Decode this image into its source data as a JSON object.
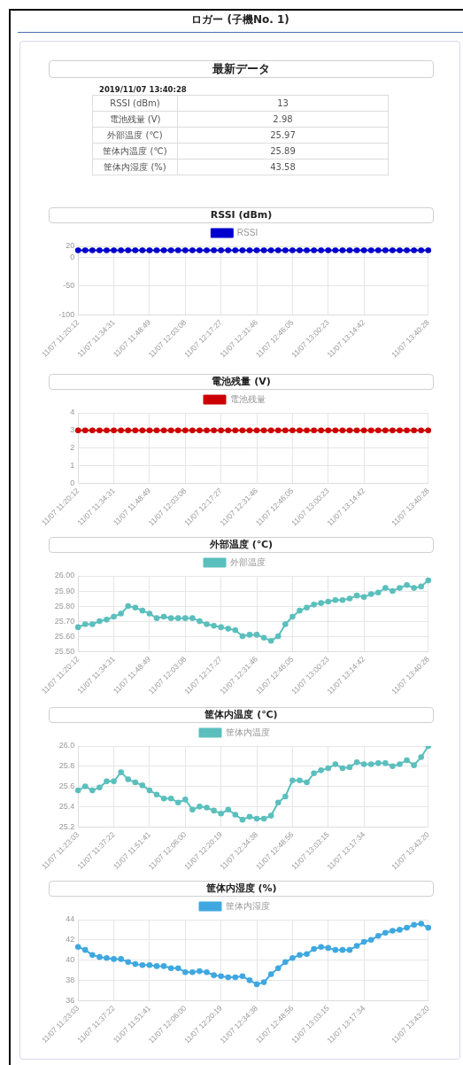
{
  "chart_data": [
    {
      "type": "other",
      "title": "ロガー (子機No. 1)",
      "subtitle": "最新データ",
      "annotations": [
        "2019/11/07 13:40:28",
        "RSSI (dBm)",
        "13",
        "電池残量 (V)",
        "2.98",
        "外部温度 (℃)",
        "25.97",
        "筐体内温度 (℃)",
        "25.89",
        "筐体内湿度 (%)",
        "43.58"
      ]
    },
    {
      "type": "line",
      "title": "RSSI (dBm)",
      "legend": "top",
      "grid": true,
      "marker": "circle",
      "line_style": "solid",
      "categories": [
        "11/07 11:20:12",
        null,
        null,
        null,
        null,
        "11/07 11:34:31",
        null,
        null,
        null,
        null,
        "11/07 11:48:49",
        null,
        null,
        null,
        null,
        "11/07 12:03:08",
        null,
        null,
        null,
        null,
        "11/07 12:17:27",
        null,
        null,
        null,
        null,
        "11/07 12:31:46",
        null,
        null,
        null,
        null,
        "11/07 12:46:05",
        null,
        null,
        null,
        null,
        "11/07 13:00:23",
        null,
        null,
        null,
        null,
        "11/07 13:14:42",
        null,
        null,
        null,
        null,
        null,
        null,
        null,
        null,
        "11/07 13:40:28"
      ],
      "ylim": [
        -100,
        20
      ],
      "yticks": [
        -100,
        -50,
        0,
        20
      ],
      "series": [
        {
          "name": "RSSI",
          "color": "#0000cc",
          "values": [
            13,
            13,
            13,
            13,
            13,
            13,
            13,
            13,
            13,
            13,
            13,
            13,
            13,
            13,
            13,
            13,
            13,
            13,
            13,
            13,
            13,
            13,
            13,
            13,
            13,
            13,
            13,
            13,
            13,
            13,
            13,
            13,
            13,
            13,
            13,
            13,
            13,
            13,
            13,
            13,
            13,
            13,
            13,
            13,
            13,
            13,
            13,
            13,
            13,
            13
          ]
        }
      ]
    },
    {
      "type": "line",
      "title": "電池残量 (V)",
      "legend": "top",
      "grid": true,
      "marker": "circle",
      "line_style": "solid",
      "categories": [
        "11/07 11:20:12",
        null,
        null,
        null,
        null,
        "11/07 11:34:31",
        null,
        null,
        null,
        null,
        "11/07 11:48:49",
        null,
        null,
        null,
        null,
        "11/07 12:03:08",
        null,
        null,
        null,
        null,
        "11/07 12:17:27",
        null,
        null,
        null,
        null,
        "11/07 12:31:46",
        null,
        null,
        null,
        null,
        "11/07 12:46:05",
        null,
        null,
        null,
        null,
        "11/07 13:00:23",
        null,
        null,
        null,
        null,
        "11/07 13:14:42",
        null,
        null,
        null,
        null,
        null,
        null,
        null,
        null,
        "11/07 13:40:28"
      ],
      "ylim": [
        0,
        4
      ],
      "yticks": [
        0,
        1,
        2,
        3,
        4
      ],
      "series": [
        {
          "name": "電池残量",
          "color": "#cc0000",
          "values": [
            3,
            3,
            3,
            3,
            3,
            3,
            3,
            3,
            3,
            3,
            3,
            3,
            3,
            3,
            3,
            3,
            3,
            3,
            3,
            3,
            3,
            3,
            3,
            3,
            3,
            3,
            3,
            3,
            3,
            3,
            3,
            3,
            3,
            3,
            3,
            3,
            3,
            3,
            3,
            3,
            3,
            3,
            3,
            3,
            3,
            3,
            3,
            3,
            3,
            3
          ]
        }
      ]
    },
    {
      "type": "line",
      "title": "外部温度 (℃)",
      "legend": "top",
      "grid": true,
      "marker": "circle",
      "line_style": "solid",
      "categories": [
        "11/07 11:20:12",
        null,
        null,
        null,
        null,
        "11/07 11:34:31",
        null,
        null,
        null,
        null,
        "11/07 11:48:49",
        null,
        null,
        null,
        null,
        "11/07 12:03:08",
        null,
        null,
        null,
        null,
        "11/07 12:17:27",
        null,
        null,
        null,
        null,
        "11/07 12:31:46",
        null,
        null,
        null,
        null,
        "11/07 12:46:05",
        null,
        null,
        null,
        null,
        "11/07 13:00:23",
        null,
        null,
        null,
        null,
        "11/07 13:14:42",
        null,
        null,
        null,
        null,
        null,
        null,
        null,
        null,
        "11/07 13:40:28"
      ],
      "ylim": [
        25.5,
        26
      ],
      "yticks": [
        {
          "value": 25.5,
          "label": "25.50"
        },
        {
          "value": 25.6,
          "label": "25.60"
        },
        {
          "value": 25.7,
          "label": "25.70"
        },
        {
          "value": 25.8,
          "label": "25.80"
        },
        {
          "value": 25.9,
          "label": "25.90"
        },
        {
          "value": 26,
          "label": "26.00"
        }
      ],
      "series": [
        {
          "name": "外部温度",
          "color": "#5bbfbd",
          "values": [
            25.66,
            25.68,
            25.68,
            25.7,
            25.71,
            25.73,
            25.75,
            25.8,
            25.79,
            25.77,
            25.75,
            25.72,
            25.73,
            25.72,
            25.72,
            25.72,
            25.72,
            25.7,
            25.68,
            25.67,
            25.66,
            25.65,
            25.64,
            25.6,
            25.61,
            25.61,
            25.59,
            25.57,
            25.6,
            25.68,
            25.73,
            25.77,
            25.79,
            25.81,
            25.82,
            25.83,
            25.84,
            25.84,
            25.85,
            25.87,
            25.86,
            25.88,
            25.89,
            25.92,
            25.9,
            25.92,
            25.94,
            25.92,
            25.93,
            25.97
          ]
        }
      ]
    },
    {
      "type": "line",
      "title": "筐体内温度 (℃)",
      "legend": "top",
      "grid": true,
      "marker": "circle",
      "line_style": "solid",
      "categories": [
        "11/07 11:23:03",
        null,
        null,
        null,
        null,
        "11/07 11:37:22",
        null,
        null,
        null,
        null,
        "11/07 11:51:41",
        null,
        null,
        null,
        null,
        "11/07 12:06:00",
        null,
        null,
        null,
        null,
        "11/07 12:20:19",
        null,
        null,
        null,
        null,
        "11/07 12:34:38",
        null,
        null,
        null,
        null,
        "11/07 12:48:56",
        null,
        null,
        null,
        null,
        "11/07 13:03:15",
        null,
        null,
        null,
        null,
        "11/07 13:17:34",
        null,
        null,
        null,
        null,
        null,
        null,
        null,
        null,
        "11/07 13:43:20"
      ],
      "ylim": [
        25.2,
        26
      ],
      "yticks": [
        {
          "value": 25.2,
          "label": "25.2"
        },
        {
          "value": 25.4,
          "label": "25.4"
        },
        {
          "value": 25.6,
          "label": "25.6"
        },
        {
          "value": 25.8,
          "label": "25.8"
        },
        {
          "value": 26,
          "label": "26.0"
        }
      ],
      "series": [
        {
          "name": "筐体内温度",
          "color": "#5bbfbd",
          "values": [
            25.56,
            25.6,
            25.56,
            25.59,
            25.65,
            25.65,
            25.74,
            25.67,
            25.64,
            25.61,
            25.56,
            25.52,
            25.48,
            25.48,
            25.44,
            25.47,
            25.37,
            25.4,
            25.39,
            25.36,
            25.33,
            25.37,
            25.32,
            25.27,
            25.3,
            25.28,
            25.28,
            25.31,
            25.44,
            25.5,
            25.66,
            25.66,
            25.64,
            25.73,
            25.76,
            25.78,
            25.82,
            25.78,
            25.79,
            25.84,
            25.82,
            25.82,
            25.83,
            25.83,
            25.8,
            25.82,
            25.86,
            25.81,
            25.89,
            26.0
          ]
        }
      ]
    },
    {
      "type": "line",
      "title": "筐体内湿度 (%)",
      "legend": "top",
      "grid": true,
      "marker": "circle",
      "line_style": "solid",
      "categories": [
        "11/07 11:23:03",
        null,
        null,
        null,
        null,
        "11/07 11:37:22",
        null,
        null,
        null,
        null,
        "11/07 11:51:41",
        null,
        null,
        null,
        null,
        "11/07 12:06:00",
        null,
        null,
        null,
        null,
        "11/07 12:20:19",
        null,
        null,
        null,
        null,
        "11/07 12:34:38",
        null,
        null,
        null,
        null,
        "11/07 12:48:56",
        null,
        null,
        null,
        null,
        "11/07 13:03:15",
        null,
        null,
        null,
        null,
        "11/07 13:17:34",
        null,
        null,
        null,
        null,
        null,
        null,
        null,
        null,
        "11/07 13:43:20"
      ],
      "ylim": [
        36,
        44
      ],
      "yticks": [
        36,
        38,
        40,
        42,
        44
      ],
      "series": [
        {
          "name": "筐体内湿度",
          "color": "#40a8e0",
          "values": [
            41.3,
            41.0,
            40.5,
            40.3,
            40.2,
            40.1,
            40.1,
            39.8,
            39.6,
            39.5,
            39.5,
            39.4,
            39.4,
            39.2,
            39.2,
            38.8,
            38.8,
            38.9,
            38.8,
            38.5,
            38.4,
            38.3,
            38.3,
            38.4,
            38.0,
            37.6,
            37.8,
            38.6,
            39.2,
            39.8,
            40.2,
            40.5,
            40.6,
            41.1,
            41.3,
            41.2,
            41.0,
            41.0,
            41.0,
            41.4,
            41.8,
            42.0,
            42.4,
            42.7,
            42.9,
            43.0,
            43.2,
            43.5,
            43.6,
            43.2
          ]
        }
      ]
    }
  ]
}
